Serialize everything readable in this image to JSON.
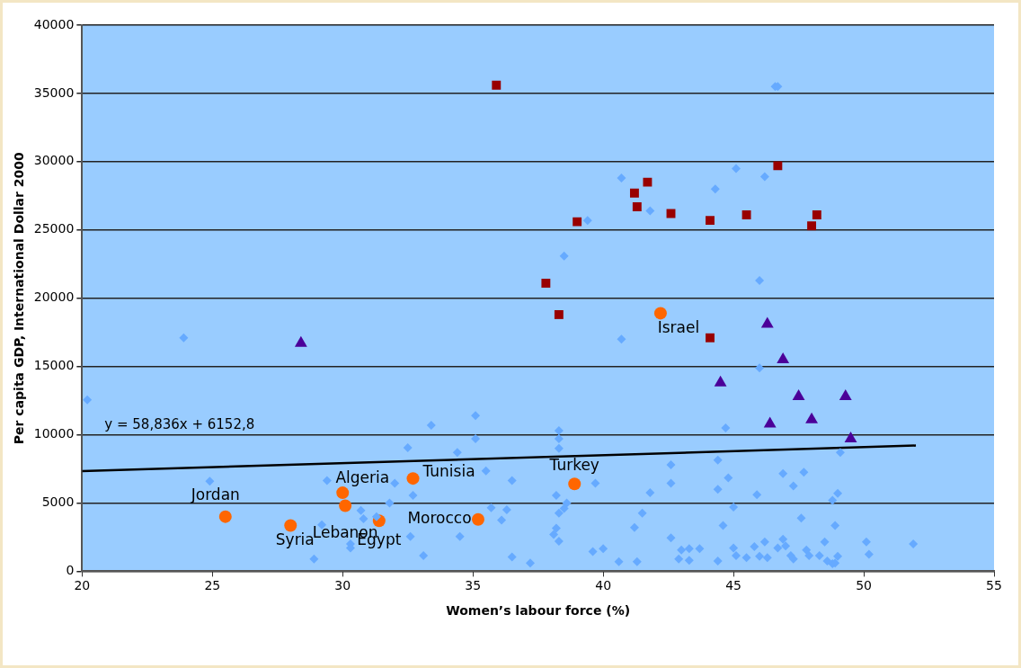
{
  "chart_data": {
    "type": "scatter",
    "xlabel": "Women’s labour force (%)",
    "ylabel": "Per capita GDP, International Dollar 2000",
    "xlim": [
      20,
      55
    ],
    "xticks": [
      20,
      25,
      30,
      35,
      40,
      45,
      50,
      55
    ],
    "ylim": [
      0,
      40000
    ],
    "yticks": [
      0,
      5000,
      10000,
      15000,
      20000,
      25000,
      30000,
      35000,
      40000
    ],
    "grid": "y",
    "legend": false,
    "series": [
      {
        "color": "#66aaff",
        "marker": "diamond",
        "x": [
          20.2,
          23.9,
          24.9,
          28.9,
          29.2,
          29.4,
          30.3,
          30.3,
          30.7,
          30.8,
          31.3,
          31.8,
          32.0,
          32.5,
          32.6,
          32.7,
          33.1,
          33.4,
          34.4,
          34.5,
          35.1,
          35.1,
          35.5,
          35.7,
          36.1,
          36.3,
          36.5,
          36.5,
          37.2,
          38.1,
          38.2,
          38.3,
          38.2,
          38.3,
          38.3,
          38.3,
          38.3,
          38.6,
          38.5,
          38.5,
          39.4,
          39.6,
          39.7,
          40.0,
          40.7,
          40.7,
          40.6,
          41.2,
          41.3,
          41.5,
          41.8,
          41.8,
          42.6,
          42.6,
          42.6,
          42.9,
          43.0,
          43.3,
          43.3,
          43.7,
          44.3,
          44.4,
          44.4,
          44.4,
          44.6,
          44.7,
          44.8,
          45.0,
          45.0,
          45.1,
          45.1,
          45.5,
          45.8,
          45.9,
          46.0,
          46.0,
          46.0,
          46.2,
          46.2,
          46.3,
          46.6,
          46.7,
          46.7,
          46.9,
          46.9,
          47.0,
          47.2,
          47.3,
          47.3,
          47.6,
          47.7,
          47.8,
          47.9,
          48.3,
          48.5,
          48.6,
          48.8,
          48.8,
          48.9,
          49.0,
          49.0,
          48.9,
          49.1,
          50.1,
          50.2,
          51.9
        ],
        "values": [
          12550,
          17100,
          6600,
          900,
          3400,
          6650,
          2000,
          1700,
          4450,
          3850,
          4000,
          5000,
          6450,
          9050,
          2550,
          5550,
          1150,
          10700,
          8700,
          2550,
          11400,
          9700,
          7350,
          4650,
          3750,
          4500,
          6650,
          1050,
          600,
          2700,
          3150,
          2200,
          5550,
          10300,
          9700,
          9000,
          4250,
          5000,
          4600,
          23100,
          25700,
          1450,
          6450,
          1650,
          28800,
          17000,
          700,
          3200,
          700,
          4250,
          26400,
          5750,
          7800,
          6450,
          2450,
          900,
          1550,
          800,
          1650,
          1650,
          28000,
          8150,
          6000,
          750,
          3350,
          10500,
          6850,
          4700,
          1700,
          1150,
          29500,
          1000,
          1800,
          5600,
          21300,
          14900,
          1100,
          28900,
          2150,
          1000,
          35500,
          35500,
          1700,
          7150,
          2350,
          1850,
          1150,
          6250,
          900,
          3900,
          7250,
          1550,
          1150,
          1150,
          2150,
          750,
          550,
          5200,
          3350,
          5700,
          1100,
          600,
          8700,
          2150,
          1250,
          2000
        ]
      },
      {
        "color": "#990000",
        "marker": "square",
        "x": [
          35.9,
          37.8,
          38.3,
          39.0,
          41.2,
          41.3,
          41.7,
          42.6,
          44.1,
          44.1,
          45.5,
          46.7,
          48.0,
          48.2
        ],
        "values": [
          35600,
          21100,
          18800,
          25600,
          27700,
          26700,
          28500,
          26200,
          25700,
          17100,
          26100,
          29700,
          25300,
          26100
        ]
      },
      {
        "color": "#4b0099",
        "marker": "triangle",
        "x": [
          28.4,
          44.5,
          46.3,
          46.4,
          46.9,
          47.5,
          48.0,
          49.3,
          49.5
        ],
        "values": [
          16700,
          13800,
          18100,
          10800,
          15500,
          12800,
          11100,
          12800,
          9700
        ]
      },
      {
        "color": "#ff6600",
        "marker": "circle",
        "x": [
          25.5,
          28.0,
          30.0,
          30.1,
          31.4,
          32.7,
          35.2,
          38.9,
          42.2
        ],
        "values": [
          4000,
          3350,
          5750,
          4800,
          3700,
          6800,
          3800,
          6400,
          18900
        ]
      },
      {
        "type": "line",
        "color": "#000000",
        "marker": "none",
        "line_style": "solid",
        "x": [
          20,
          52
        ],
        "values": [
          7330,
          9210
        ]
      }
    ],
    "annotations": [
      "y = 58,836x + 6152,8",
      {
        "text": "Jordan",
        "x": 25.5,
        "y": 4000
      },
      {
        "text": "Syria",
        "x": 28.0,
        "y": 3350
      },
      {
        "text": "Algeria",
        "x": 30.0,
        "y": 5750
      },
      {
        "text": "Lebanon",
        "x": 30.1,
        "y": 4800
      },
      {
        "text": "Egypt",
        "x": 31.4,
        "y": 3700
      },
      {
        "text": "Tunisia",
        "x": 32.7,
        "y": 6800
      },
      {
        "text": "Morocco",
        "x": 35.2,
        "y": 3800
      },
      {
        "text": "Turkey",
        "x": 38.9,
        "y": 6400
      },
      {
        "text": "Israel",
        "x": 42.2,
        "y": 18900
      }
    ]
  }
}
